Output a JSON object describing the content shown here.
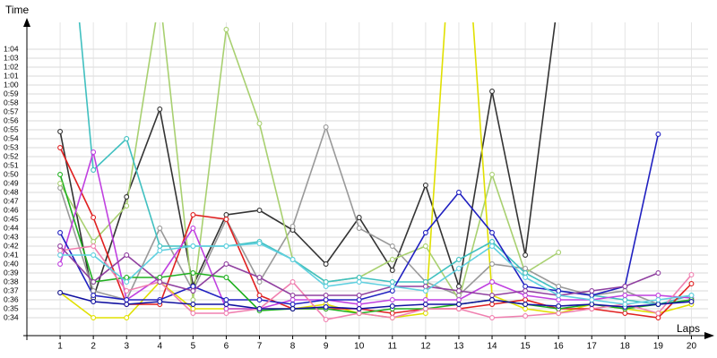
{
  "chart_data": {
    "type": "line",
    "y_label": "Time",
    "x_label": "Laps",
    "x": [
      1,
      2,
      3,
      4,
      5,
      6,
      7,
      8,
      9,
      10,
      11,
      12,
      13,
      14,
      15,
      16,
      17,
      18,
      19,
      20
    ],
    "xlim": [
      0,
      20.5
    ],
    "xticks": [
      1,
      2,
      3,
      4,
      5,
      6,
      7,
      8,
      9,
      10,
      11,
      12,
      13,
      14,
      15,
      16,
      17,
      18,
      19,
      20
    ],
    "ylim": [
      32,
      67
    ],
    "yticks": [
      {
        "value": 34,
        "label": "0:34"
      },
      {
        "value": 35,
        "label": "0:35"
      },
      {
        "value": 36,
        "label": "0:36"
      },
      {
        "value": 37,
        "label": "0:37"
      },
      {
        "value": 38,
        "label": "0:38"
      },
      {
        "value": 39,
        "label": "0:39"
      },
      {
        "value": 40,
        "label": "0:40"
      },
      {
        "value": 41,
        "label": "0:41"
      },
      {
        "value": 42,
        "label": "0:42"
      },
      {
        "value": 43,
        "label": "0:43"
      },
      {
        "value": 44,
        "label": "0:44"
      },
      {
        "value": 45,
        "label": "0:45"
      },
      {
        "value": 46,
        "label": "0:46"
      },
      {
        "value": 47,
        "label": "0:47"
      },
      {
        "value": 48,
        "label": "0:48"
      },
      {
        "value": 49,
        "label": "0:49"
      },
      {
        "value": 50,
        "label": "0:50"
      },
      {
        "value": 51,
        "label": "0:51"
      },
      {
        "value": 52,
        "label": "0:52"
      },
      {
        "value": 53,
        "label": "0:53"
      },
      {
        "value": 54,
        "label": "0:54"
      },
      {
        "value": 55,
        "label": "0:55"
      },
      {
        "value": 56,
        "label": "0:56"
      },
      {
        "value": 57,
        "label": "0:57"
      },
      {
        "value": 58,
        "label": "0:58"
      },
      {
        "value": 59,
        "label": "0:59"
      },
      {
        "value": 60,
        "label": "1:00"
      },
      {
        "value": 61,
        "label": "1:01"
      },
      {
        "value": 62,
        "label": "1:02"
      },
      {
        "value": 63,
        "label": "1:03"
      },
      {
        "value": 64,
        "label": "1:04"
      }
    ],
    "grid": true,
    "series": [
      {
        "color": "#333333",
        "values": [
          54.8,
          36.2,
          47.5,
          57.3,
          37.6,
          45.5,
          46,
          43.8,
          40,
          45.2,
          39.3,
          48.8,
          37.5,
          59.3,
          41,
          70,
          null,
          null,
          null,
          null
        ]
      },
      {
        "color": "#999999",
        "values": [
          48.5,
          37,
          36,
          44,
          37,
          45,
          38,
          44.2,
          55.3,
          44,
          42,
          38,
          36.5,
          40,
          39.5,
          37.5,
          36.5,
          37,
          35.5,
          36
        ]
      },
      {
        "color": "#a8d070",
        "values": [
          49,
          42.5,
          46.5,
          70,
          36,
          66.2,
          55.7,
          40.5,
          38,
          38.5,
          40.5,
          42,
          36,
          50,
          39,
          41.3,
          null,
          null,
          null,
          null
        ]
      },
      {
        "color": "#e0e000",
        "values": [
          36.8,
          34,
          34,
          38,
          35,
          35,
          35,
          35,
          35.5,
          34.5,
          34,
          34.5,
          90,
          36.5,
          35,
          34.5,
          35.5,
          35,
          34.5,
          35.5
        ]
      },
      {
        "color": "#40c0c0",
        "values": [
          90,
          50.5,
          54,
          42,
          42,
          42,
          42.5,
          40.5,
          38,
          38.5,
          38,
          38,
          40.5,
          42.5,
          39,
          37,
          36.5,
          36,
          35.5,
          36.5
        ]
      },
      {
        "color": "#e02020",
        "values": [
          53,
          45.2,
          35.5,
          35.5,
          45.5,
          45,
          36.5,
          35,
          35,
          35,
          34.5,
          35,
          35,
          35.5,
          36,
          35,
          35,
          34.5,
          34,
          37.8
        ]
      },
      {
        "color": "#c040e0",
        "values": [
          40,
          52.5,
          36,
          38.5,
          44,
          35,
          35,
          36,
          36,
          35.5,
          36,
          36,
          36,
          38,
          36.5,
          36,
          36,
          36.5,
          36.5,
          36.2
        ]
      },
      {
        "color": "#2020c0",
        "values": [
          43.5,
          36.5,
          36,
          36,
          37.5,
          36,
          36,
          35.5,
          36,
          36,
          37,
          43.5,
          48,
          43.5,
          37.5,
          37,
          36.5,
          37.5,
          54.5,
          null
        ]
      },
      {
        "color": "#20b020",
        "values": [
          50,
          38,
          38.5,
          38.5,
          39,
          38.5,
          34.8,
          35,
          35,
          34.5,
          35,
          35,
          35.5,
          36,
          35.5,
          35,
          35.5,
          35,
          35.5,
          36
        ]
      },
      {
        "color": "#f080b0",
        "values": [
          41.5,
          42,
          37,
          38,
          34.5,
          34.5,
          35,
          38,
          33.8,
          34.5,
          34,
          35,
          35,
          34,
          34.2,
          34.5,
          35,
          35.5,
          34.5,
          38.8
        ]
      },
      {
        "color": "#9040a0",
        "values": [
          42,
          38,
          41,
          38,
          37,
          40,
          38.5,
          36.5,
          36.5,
          36.5,
          37.5,
          37.5,
          37,
          36.5,
          37,
          36.5,
          37,
          37.5,
          39,
          null
        ]
      },
      {
        "color": "#1010a0",
        "values": [
          36.8,
          35.8,
          35.5,
          35.8,
          35.5,
          35.5,
          35,
          35,
          35.2,
          35,
          35.3,
          35.5,
          35.5,
          36,
          35.5,
          35.3,
          35.5,
          35.2,
          35.5,
          35.8
        ]
      },
      {
        "color": "#60d0e0",
        "values": [
          41,
          41,
          38,
          41.5,
          42,
          42,
          42.3,
          40.5,
          37.5,
          38,
          37.5,
          37,
          39.5,
          42,
          38.5,
          36.5,
          36,
          35.5,
          36,
          36.5
        ]
      }
    ]
  }
}
